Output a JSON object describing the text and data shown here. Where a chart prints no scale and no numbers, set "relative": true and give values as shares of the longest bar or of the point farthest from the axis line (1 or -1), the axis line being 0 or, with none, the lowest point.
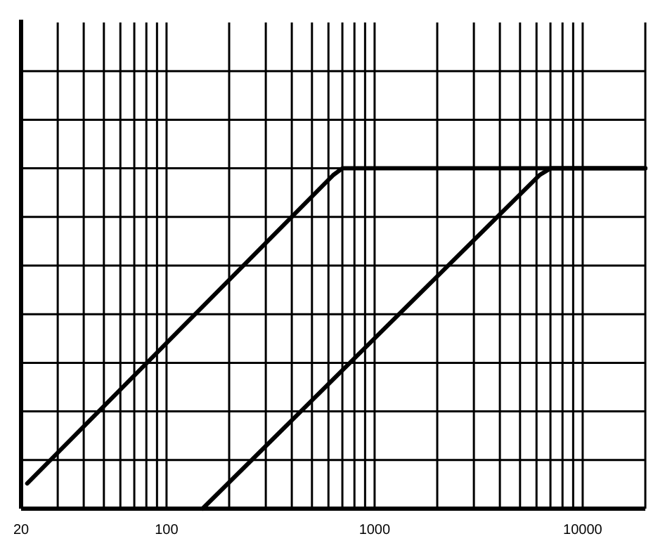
{
  "chart_data": {
    "type": "line",
    "relative": true,
    "log": "x",
    "grid": true,
    "line_style": "solid",
    "xlim": [
      20,
      20000
    ],
    "xticks": [
      20,
      {
        "value": 30,
        "label": null
      },
      {
        "value": 40,
        "label": null
      },
      {
        "value": 50,
        "label": null
      },
      {
        "value": 60,
        "label": null
      },
      {
        "value": 70,
        "label": null
      },
      {
        "value": 80,
        "label": null
      },
      {
        "value": 90,
        "label": null
      },
      100,
      {
        "value": 200,
        "label": null
      },
      {
        "value": 300,
        "label": null
      },
      {
        "value": 400,
        "label": null
      },
      {
        "value": 500,
        "label": null
      },
      {
        "value": 600,
        "label": null
      },
      {
        "value": 700,
        "label": null
      },
      {
        "value": 800,
        "label": null
      },
      {
        "value": 900,
        "label": null
      },
      1000,
      {
        "value": 2000,
        "label": null
      },
      {
        "value": 3000,
        "label": null
      },
      {
        "value": 4000,
        "label": null
      },
      {
        "value": 5000,
        "label": null
      },
      {
        "value": 6000,
        "label": null
      },
      {
        "value": 7000,
        "label": null
      },
      {
        "value": 8000,
        "label": null
      },
      {
        "value": 9000,
        "label": null
      },
      10000,
      {
        "value": 20000,
        "label": null
      }
    ],
    "series": [
      {
        "color": "#000000",
        "x": [
          21.4,
          632,
          700,
          20000
        ],
        "values": [
          0.074,
          0.98,
          1,
          1
        ]
      },
      {
        "color": "#000000",
        "x": [
          149,
          6200,
          7000,
          20000
        ],
        "values": [
          0,
          0.98,
          1,
          1
        ]
      }
    ]
  }
}
